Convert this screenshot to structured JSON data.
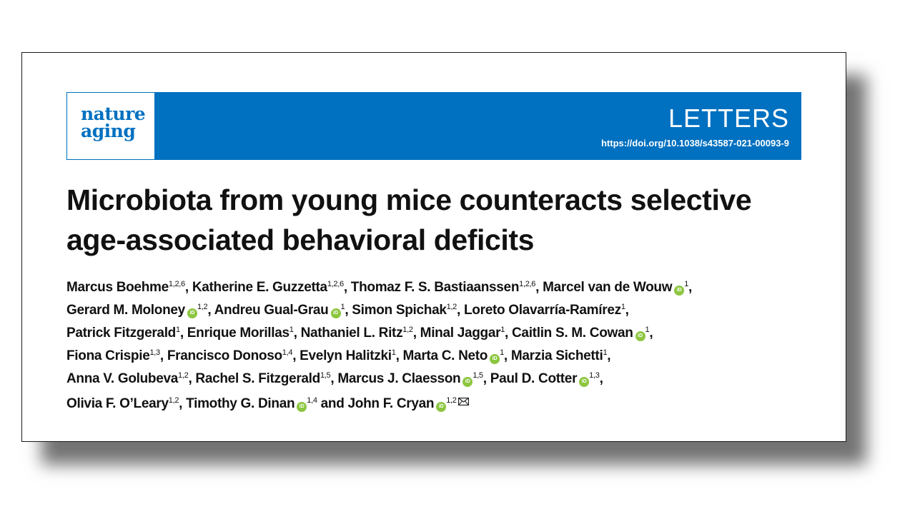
{
  "journal": {
    "logo_line1": "nature",
    "logo_line2": "aging",
    "section": "LETTERS",
    "doi": "https://doi.org/10.1038/s43587-021-00093-9",
    "brand_color": "#0070c0",
    "orcid_color": "#8cc63f"
  },
  "title": {
    "line1": "Microbiota from young mice counteracts selective",
    "line2": "age-associated behavioral deficits"
  },
  "authors": {
    "a1": "Marcus Boehme",
    "a1_sup": "1,2,6",
    "a2": "Katherine E. Guzzetta",
    "a2_sup": "1,2,6",
    "a3": "Thomaz F. S. Bastiaanssen",
    "a3_sup": "1,2,6",
    "a4": "Marcel van de Wouw",
    "a4_sup": "1",
    "a5": "Gerard M. Moloney",
    "a5_sup": "1,2",
    "a6": "Andreu Gual-Grau",
    "a6_sup": "1",
    "a7": "Simon Spichak",
    "a7_sup": "1,2",
    "a8": "Loreto Olavarría-Ramírez",
    "a8_sup": "1",
    "a9": "Patrick Fitzgerald",
    "a9_sup": "1",
    "a10": "Enrique Morillas",
    "a10_sup": "1",
    "a11": "Nathaniel L. Ritz",
    "a11_sup": "1,2",
    "a12": "Minal Jaggar",
    "a12_sup": "1",
    "a13": "Caitlin S. M. Cowan",
    "a13_sup": "1",
    "a14": "Fiona Crispie",
    "a14_sup": "1,3",
    "a15": "Francisco Donoso",
    "a15_sup": "1,4",
    "a16": "Evelyn Halitzki",
    "a16_sup": "1",
    "a17": "Marta C. Neto",
    "a17_sup": "1",
    "a18": "Marzia Sichetti",
    "a18_sup": "1",
    "a19": "Anna V. Golubeva",
    "a19_sup": "1,2",
    "a20": "Rachel S. Fitzgerald",
    "a20_sup": "1,5",
    "a21": "Marcus J. Claesson",
    "a21_sup": "1,5",
    "a22": "Paul D. Cotter",
    "a22_sup": "1,3",
    "a23": "Olivia F. O’Leary",
    "a23_sup": "1,2",
    "a24": "Timothy G. Dinan",
    "a24_sup": "1,4",
    "and": "and",
    "a25": "John F. Cryan",
    "a25_sup": "1,2"
  },
  "icons": {
    "orcid": "orcid-icon",
    "orcid_text": "iD",
    "mail": "envelope-icon"
  }
}
